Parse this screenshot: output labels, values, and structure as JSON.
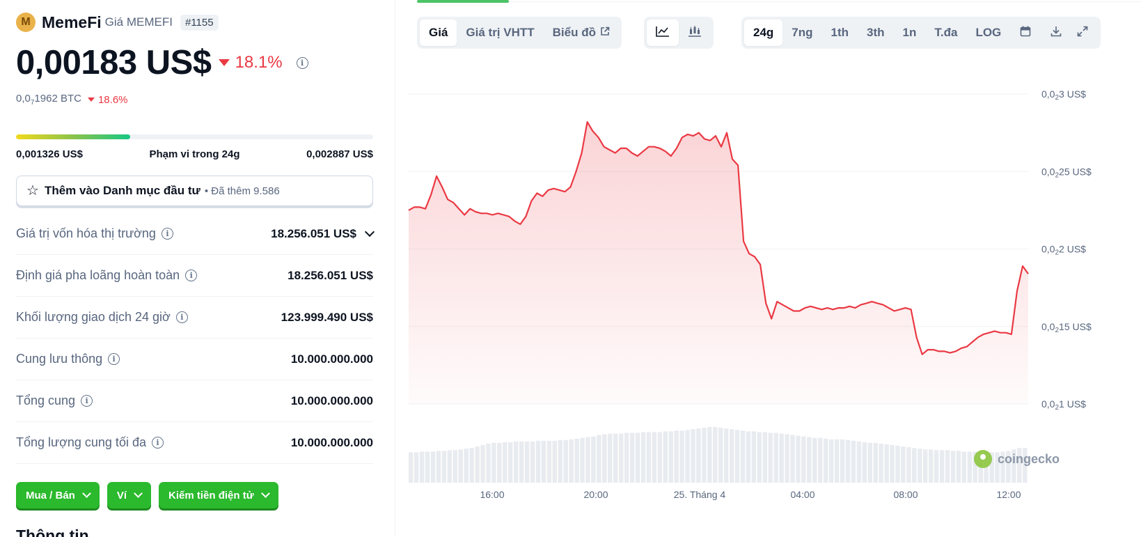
{
  "coin": {
    "logo_letter": "M",
    "name": "MemeFi",
    "subtitle": "Giá MEMEFI",
    "rank": "#1155",
    "price": "0,00183 US$",
    "change_24h": "18.1%",
    "btc_price_prefix": "0,0",
    "btc_price_sub": "7",
    "btc_price_suffix": "1962 BTC",
    "btc_change": "18.6%",
    "colors": {
      "down": "#ea3943",
      "up": "#16c784",
      "accent_green": "#2bb92d"
    }
  },
  "range_24h": {
    "low": "0,001326 US$",
    "label": "Phạm vi trong 24g",
    "high": "0,002887 US$",
    "fill_fraction": 0.32
  },
  "watchlist": {
    "label": "Thêm vào Danh mục đầu tư",
    "count": "• Đã thêm 9.586"
  },
  "stats": [
    {
      "label": "Giá trị vốn hóa thị trường",
      "value": "18.256.051 US$",
      "expandable": true
    },
    {
      "label": "Định giá pha loãng hoàn toàn",
      "value": "18.256.051 US$"
    },
    {
      "label": "Khối lượng giao dịch 24 giờ",
      "value": "123.999.490 US$"
    },
    {
      "label": "Cung lưu thông",
      "value": "10.000.000.000"
    },
    {
      "label": "Tổng cung",
      "value": "10.000.000.000"
    },
    {
      "label": "Tổng lượng cung tối đa",
      "value": "10.000.000.000"
    }
  ],
  "actions": {
    "buy_sell": "Mua / Bán",
    "wallet": "Ví",
    "earn": "Kiếm tiền điện tử"
  },
  "info_heading": "Thông tin",
  "chart_tabs": {
    "price": "Giá",
    "market_cap": "Giá trị VHTT",
    "tradingview": "Biểu đồ",
    "external_icon": "external-link-icon",
    "line_icon": "line-chart-icon",
    "candle_icon": "candlestick-icon"
  },
  "ranges": [
    "24g",
    "7ng",
    "1th",
    "3th",
    "1n",
    "T.đa",
    "LOG"
  ],
  "range_active": "24g",
  "chart_tools": {
    "calendar_icon": "calendar-icon",
    "download_icon": "download-icon",
    "expand_icon": "expand-icon"
  },
  "watermark": "coingecko",
  "chart_data": {
    "type": "area",
    "x_tick_labels": [
      "16:00",
      "20:00",
      "25. Tháng 4",
      "04:00",
      "08:00",
      "12:00"
    ],
    "y_tick_labels": [
      {
        "prefix": "0,0",
        "sub": "2",
        "suffix": "3 US$",
        "value": 0.003
      },
      {
        "prefix": "0,0",
        "sub": "2",
        "suffix": "25 US$",
        "value": 0.0025
      },
      {
        "prefix": "0,0",
        "sub": "2",
        "suffix": "2 US$",
        "value": 0.002
      },
      {
        "prefix": "0,0",
        "sub": "2",
        "suffix": "15 US$",
        "value": 0.0015
      },
      {
        "prefix": "0,0",
        "sub": "2",
        "suffix": "1 US$",
        "value": 0.001
      }
    ],
    "ylim": [
      0.001,
      0.003
    ],
    "line_color": "#ea3943",
    "series_price": [
      0.00225,
      0.00227,
      0.00227,
      0.00226,
      0.00235,
      0.00247,
      0.0024,
      0.00232,
      0.0023,
      0.00226,
      0.00222,
      0.00226,
      0.00224,
      0.00223,
      0.00223,
      0.00222,
      0.00223,
      0.00222,
      0.00221,
      0.00218,
      0.00216,
      0.00221,
      0.00231,
      0.00236,
      0.00234,
      0.00238,
      0.00239,
      0.00238,
      0.00237,
      0.0024,
      0.0025,
      0.00262,
      0.00282,
      0.00276,
      0.00272,
      0.00266,
      0.00264,
      0.00262,
      0.00265,
      0.00265,
      0.00262,
      0.0026,
      0.00263,
      0.00266,
      0.00266,
      0.00265,
      0.00263,
      0.0026,
      0.00265,
      0.00272,
      0.00274,
      0.00273,
      0.00275,
      0.00271,
      0.0027,
      0.00273,
      0.00266,
      0.00275,
      0.00258,
      0.00254,
      0.00205,
      0.00197,
      0.00195,
      0.0019,
      0.00165,
      0.00155,
      0.00166,
      0.00164,
      0.00162,
      0.0016,
      0.0016,
      0.00162,
      0.00163,
      0.00162,
      0.00161,
      0.00162,
      0.00161,
      0.00162,
      0.00162,
      0.00163,
      0.00162,
      0.00164,
      0.00165,
      0.00166,
      0.00165,
      0.00164,
      0.00162,
      0.0016,
      0.00161,
      0.00162,
      0.00161,
      0.00143,
      0.00132,
      0.00135,
      0.00135,
      0.00134,
      0.00134,
      0.00133,
      0.00134,
      0.00136,
      0.00137,
      0.0014,
      0.00143,
      0.00145,
      0.00146,
      0.00147,
      0.00146,
      0.00146,
      0.00145,
      0.00173,
      0.00189,
      0.00184
    ],
    "series_volume": [
      0.42,
      0.42,
      0.43,
      0.43,
      0.43,
      0.44,
      0.44,
      0.45,
      0.45,
      0.46,
      0.47,
      0.48,
      0.5,
      0.52,
      0.54,
      0.55,
      0.55,
      0.56,
      0.56,
      0.57,
      0.57,
      0.57,
      0.57,
      0.58,
      0.58,
      0.58,
      0.58,
      0.59,
      0.59,
      0.6,
      0.61,
      0.62,
      0.63,
      0.64,
      0.66,
      0.67,
      0.68,
      0.68,
      0.68,
      0.69,
      0.69,
      0.69,
      0.7,
      0.7,
      0.7,
      0.7,
      0.71,
      0.71,
      0.72,
      0.72,
      0.73,
      0.74,
      0.75,
      0.76,
      0.77,
      0.77,
      0.76,
      0.75,
      0.74,
      0.73,
      0.72,
      0.71,
      0.71,
      0.7,
      0.7,
      0.69,
      0.69,
      0.68,
      0.67,
      0.66,
      0.65,
      0.64,
      0.63,
      0.62,
      0.62,
      0.61,
      0.6,
      0.6,
      0.6,
      0.59,
      0.58,
      0.57,
      0.56,
      0.55,
      0.55,
      0.54,
      0.53,
      0.52,
      0.51,
      0.5,
      0.49,
      0.48,
      0.47,
      0.46,
      0.46,
      0.45,
      0.45,
      0.45,
      0.44,
      0.44,
      0.43,
      0.43,
      0.43,
      0.42,
      0.42,
      0.42,
      0.42,
      0.43,
      0.44,
      0.46,
      0.48,
      0.48
    ]
  }
}
